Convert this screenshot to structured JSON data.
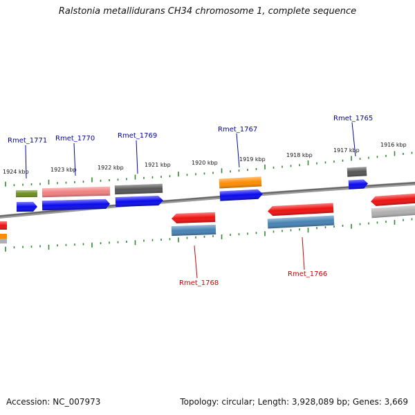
{
  "title": "Ralstonia metallidurans CH34 chromosome 1, complete sequence",
  "footer": {
    "accession": "Accession: NC_007973",
    "summary": "Topology: circular; Length: 3,928,089 bp; Genes: 3,669"
  },
  "colors": {
    "backbone": "#7a7a7a",
    "tick": "#2e8b2e",
    "label_forward": "#0000aa",
    "label_reverse": "#cc0000",
    "blue": "#0a0aee",
    "red": "#ee1111",
    "olive": "#6b8e23",
    "pink": "#f08080",
    "darkgray": "#555555",
    "orange": "#ff8c00",
    "steelblue": "#4682b4",
    "lightgray": "#b0b0b0"
  },
  "kbp_labels": [
    "1924 kbp",
    "1923 kbp",
    "1922 kbp",
    "1921 kbp",
    "1920 kbp",
    "1919 kbp",
    "1918 kbp",
    "1917 kbp",
    "1916 kbp"
  ],
  "gene_labels": [
    {
      "name": "Rmet_1771",
      "strand": "+"
    },
    {
      "name": "Rmet_1770",
      "strand": "+"
    },
    {
      "name": "Rmet_1769",
      "strand": "+"
    },
    {
      "name": "Rmet_1767",
      "strand": "+"
    },
    {
      "name": "Rmet_1765",
      "strand": "+"
    },
    {
      "name": "Rmet_1768",
      "strand": "-"
    },
    {
      "name": "Rmet_1766",
      "strand": "-"
    }
  ]
}
